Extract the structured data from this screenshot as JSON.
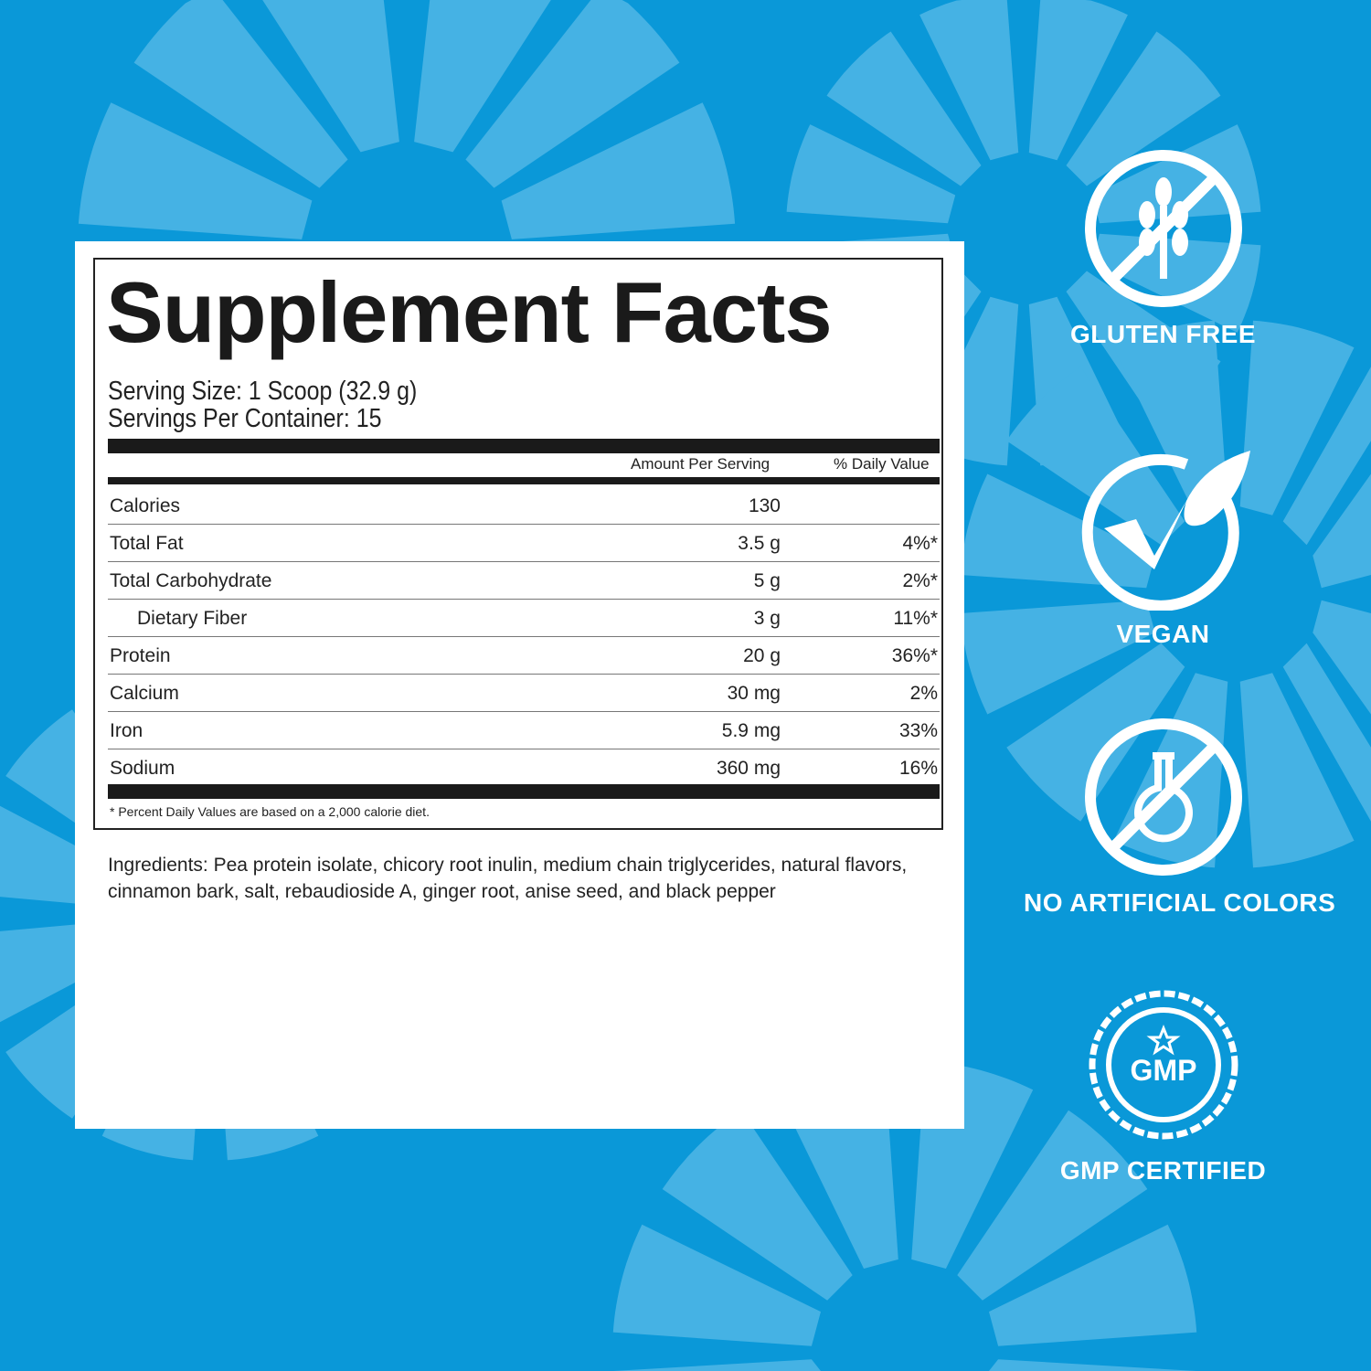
{
  "colors": {
    "background": "#0a98d8",
    "slice": "#45b2e4",
    "panel": "#ffffff",
    "text": "#1a1a1a"
  },
  "facts": {
    "title": "Supplement Facts",
    "serving_size": "Serving Size: 1 Scoop (32.9 g)",
    "servings_per_container": "Servings Per Container: 15",
    "col_amount": "Amount Per Serving",
    "col_dv": "% Daily Value",
    "rows": [
      {
        "name": "Calories",
        "amount": "130",
        "dv": ""
      },
      {
        "name": "Total Fat",
        "amount": "3.5 g",
        "dv": "4%*"
      },
      {
        "name": "Total Carbohydrate",
        "amount": "5 g",
        "dv": "2%*"
      },
      {
        "name": "Dietary Fiber",
        "amount": "3 g",
        "dv": "11%*"
      },
      {
        "name": "Protein",
        "amount": "20 g",
        "dv": "36%*"
      },
      {
        "name": "Calcium",
        "amount": "30 mg",
        "dv": "2%"
      },
      {
        "name": "Iron",
        "amount": "5.9 mg",
        "dv": "33%"
      },
      {
        "name": "Sodium",
        "amount": "360 mg",
        "dv": "16%"
      }
    ],
    "footnote": "* Percent Daily Values are based on a 2,000 calorie diet."
  },
  "ingredients": "Ingredients: Pea protein isolate, chicory root inulin, medium chain triglycerides, natural flavors, cinnamon bark, salt, rebaudioside A, ginger root, anise seed, and black pepper",
  "badges": [
    {
      "icon": "gluten-free-icon",
      "label": "GLUTEN FREE"
    },
    {
      "icon": "vegan-leaf-check-icon",
      "label": "VEGAN"
    },
    {
      "icon": "no-artificial-colors-flask-icon",
      "label": "NO ARTIFICIAL COLORS"
    },
    {
      "icon": "gmp-seal-icon",
      "label": "GMP CERTIFIED",
      "seal_text": "GMP"
    }
  ]
}
